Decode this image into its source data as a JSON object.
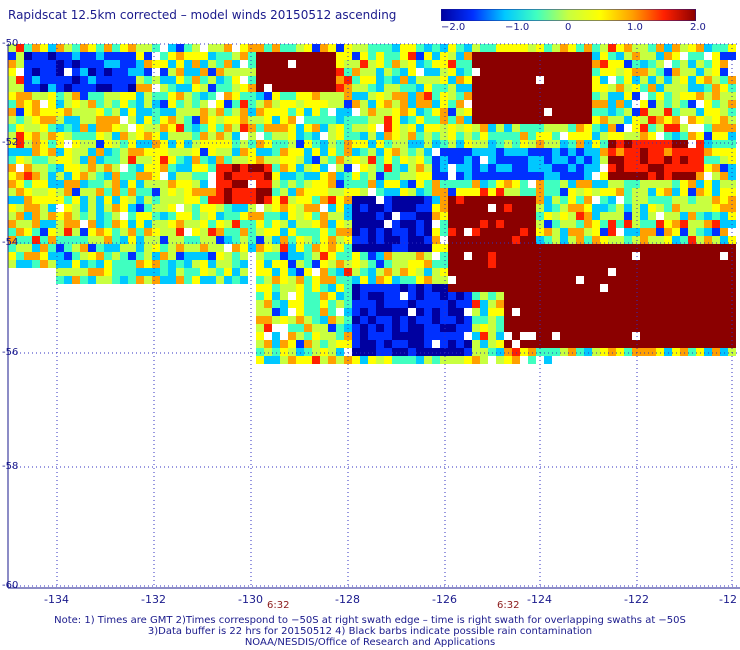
{
  "title": "Rapidscat 12.5km corrected – model winds 20150512 ascending",
  "colorbar": {
    "min": -2.0,
    "max": 2.0,
    "ticks": [
      "−2.0",
      "−1.0",
      "0",
      "1.0",
      "2.0"
    ],
    "palette": [
      "#0000a0",
      "#0030ff",
      "#00c8ff",
      "#40ffc0",
      "#c8ff40",
      "#ffff00",
      "#ffa000",
      "#ff2000",
      "#8b0000"
    ]
  },
  "map": {
    "lat_labels": [
      "-50",
      "-52",
      "-54",
      "-56",
      "-58",
      "-60"
    ],
    "lon_labels": [
      "-134",
      "-132",
      "-130",
      "-128",
      "-126",
      "-124",
      "-122",
      "-12"
    ],
    "time_labels": [
      "6:32",
      "6:32"
    ],
    "grid_color": "#3030c0",
    "missing_color": "#ffffff"
  },
  "notes": {
    "line1": "Note: 1) Times are GMT 2)Times correspond to −50S at right swath edge – time is right swath for overlapping swaths at −50S",
    "line2": "3)Data buffer is 22 hrs for 20150512 4) Black barbs indicate possible rain contamination",
    "line3": "NOAA/NESDIS/Office of Research and Applications"
  }
}
